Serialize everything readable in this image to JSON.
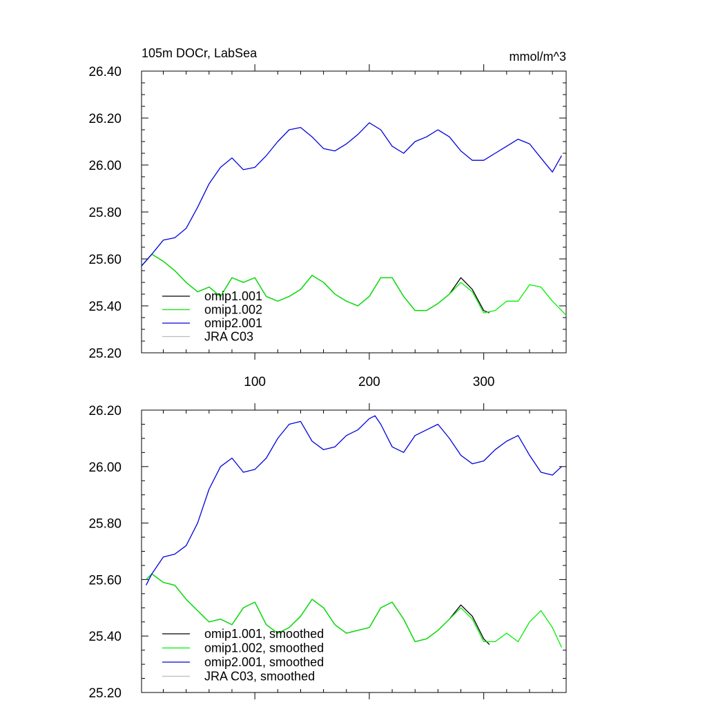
{
  "chart_data": [
    {
      "type": "line",
      "title": "105m DOCr, LabSea",
      "units": "mmol/m^3",
      "xlim": [
        1,
        372
      ],
      "ylim": [
        25.2,
        26.4
      ],
      "xticks": [
        100,
        200,
        300
      ],
      "xtick_labels": [
        "100",
        "200",
        "300"
      ],
      "yticks": [
        25.2,
        25.4,
        25.6,
        25.8,
        26.0,
        26.2,
        26.4
      ],
      "ytick_labels": [
        "25.20",
        "25.40",
        "25.60",
        "25.80",
        "26.00",
        "26.20",
        "26.40"
      ],
      "legend_position": "bottom-left",
      "series": [
        {
          "name": "omip1.001",
          "color": "#000000",
          "x": [
            1,
            10,
            20,
            30,
            40,
            50,
            60,
            70,
            80,
            90,
            100,
            110,
            120,
            130,
            140,
            150,
            160,
            170,
            180,
            190,
            200,
            210,
            220,
            230,
            240,
            250,
            260,
            270,
            280,
            290,
            300,
            305
          ],
          "y": [
            25.57,
            25.62,
            25.59,
            25.55,
            25.5,
            25.46,
            25.48,
            25.44,
            25.52,
            25.5,
            25.52,
            25.44,
            25.42,
            25.44,
            25.47,
            25.53,
            25.5,
            25.45,
            25.42,
            25.4,
            25.44,
            25.52,
            25.52,
            25.44,
            25.38,
            25.38,
            25.41,
            25.45,
            25.52,
            25.47,
            25.38,
            25.37
          ]
        },
        {
          "name": "omip1.002",
          "color": "#00ee00",
          "x": [
            1,
            10,
            20,
            30,
            40,
            50,
            60,
            70,
            80,
            90,
            100,
            110,
            120,
            130,
            140,
            150,
            160,
            170,
            180,
            190,
            200,
            210,
            220,
            230,
            240,
            250,
            260,
            270,
            280,
            290,
            300,
            310,
            320,
            330,
            340,
            350,
            360,
            372
          ],
          "y": [
            25.57,
            25.62,
            25.59,
            25.55,
            25.5,
            25.46,
            25.48,
            25.44,
            25.52,
            25.5,
            25.52,
            25.44,
            25.42,
            25.44,
            25.47,
            25.53,
            25.5,
            25.45,
            25.42,
            25.4,
            25.44,
            25.52,
            25.52,
            25.44,
            25.38,
            25.38,
            25.41,
            25.45,
            25.5,
            25.46,
            25.37,
            25.38,
            25.42,
            25.42,
            25.49,
            25.48,
            25.42,
            25.36
          ]
        },
        {
          "name": "omip2.001",
          "color": "#0000dd",
          "x": [
            1,
            10,
            20,
            30,
            40,
            50,
            60,
            70,
            80,
            90,
            100,
            110,
            120,
            130,
            140,
            150,
            160,
            170,
            180,
            190,
            200,
            210,
            220,
            230,
            240,
            250,
            260,
            270,
            280,
            290,
            300,
            310,
            320,
            330,
            340,
            350,
            360,
            368
          ],
          "y": [
            25.57,
            25.62,
            25.68,
            25.69,
            25.73,
            25.82,
            25.92,
            25.99,
            26.03,
            25.98,
            25.99,
            26.04,
            26.1,
            26.15,
            26.16,
            26.12,
            26.07,
            26.06,
            26.09,
            26.13,
            26.18,
            26.15,
            26.08,
            26.05,
            26.1,
            26.12,
            26.15,
            26.12,
            26.06,
            26.02,
            26.02,
            26.05,
            26.08,
            26.11,
            26.09,
            26.03,
            25.97,
            26.04
          ]
        },
        {
          "name": "JRA C03",
          "color": "#bbbbbb",
          "x": [],
          "y": []
        }
      ]
    },
    {
      "type": "line",
      "title": "",
      "units": "",
      "xlim": [
        1,
        372
      ],
      "ylim": [
        25.2,
        26.2
      ],
      "xticks": [
        100,
        200,
        300
      ],
      "xtick_labels": [],
      "yticks": [
        25.2,
        25.4,
        25.6,
        25.8,
        26.0,
        26.2
      ],
      "ytick_labels": [
        "25.20",
        "25.40",
        "25.60",
        "25.80",
        "26.00",
        "26.20"
      ],
      "legend_position": "bottom-left",
      "series": [
        {
          "name": "omip1.001, smoothed",
          "color": "#000000",
          "x": [
            5,
            10,
            20,
            30,
            40,
            50,
            60,
            70,
            80,
            90,
            100,
            110,
            120,
            130,
            140,
            150,
            160,
            170,
            180,
            190,
            200,
            210,
            220,
            230,
            240,
            250,
            260,
            270,
            280,
            290,
            300,
            305
          ],
          "y": [
            25.6,
            25.62,
            25.59,
            25.58,
            25.53,
            25.49,
            25.45,
            25.46,
            25.44,
            25.5,
            25.52,
            25.44,
            25.41,
            25.43,
            25.47,
            25.53,
            25.5,
            25.44,
            25.41,
            25.42,
            25.43,
            25.5,
            25.52,
            25.46,
            25.38,
            25.39,
            25.42,
            25.46,
            25.51,
            25.47,
            25.39,
            25.37
          ]
        },
        {
          "name": "omip1.002, smoothed",
          "color": "#00ee00",
          "x": [
            5,
            10,
            20,
            30,
            40,
            50,
            60,
            70,
            80,
            90,
            100,
            110,
            120,
            130,
            140,
            150,
            160,
            170,
            180,
            190,
            200,
            210,
            220,
            230,
            240,
            250,
            260,
            270,
            280,
            290,
            300,
            310,
            320,
            330,
            340,
            350,
            360,
            368
          ],
          "y": [
            25.6,
            25.62,
            25.59,
            25.58,
            25.53,
            25.49,
            25.45,
            25.46,
            25.44,
            25.5,
            25.52,
            25.44,
            25.41,
            25.43,
            25.47,
            25.53,
            25.5,
            25.44,
            25.41,
            25.42,
            25.43,
            25.5,
            25.52,
            25.46,
            25.38,
            25.39,
            25.42,
            25.46,
            25.5,
            25.46,
            25.38,
            25.38,
            25.41,
            25.38,
            25.45,
            25.49,
            25.43,
            25.36
          ]
        },
        {
          "name": "omip2.001, smoothed",
          "color": "#0000dd",
          "x": [
            5,
            10,
            20,
            30,
            40,
            50,
            60,
            70,
            80,
            90,
            100,
            110,
            120,
            130,
            140,
            150,
            160,
            170,
            180,
            190,
            200,
            205,
            210,
            220,
            230,
            240,
            250,
            260,
            270,
            280,
            290,
            300,
            310,
            320,
            330,
            340,
            350,
            360,
            368
          ],
          "y": [
            25.58,
            25.62,
            25.68,
            25.69,
            25.72,
            25.8,
            25.92,
            26.0,
            26.03,
            25.98,
            25.99,
            26.03,
            26.1,
            26.15,
            26.16,
            26.09,
            26.06,
            26.07,
            26.11,
            26.13,
            26.17,
            26.18,
            26.15,
            26.07,
            26.05,
            26.11,
            26.13,
            26.15,
            26.1,
            26.04,
            26.01,
            26.02,
            26.06,
            26.09,
            26.11,
            26.04,
            25.98,
            25.97,
            26.0
          ]
        },
        {
          "name": "JRA C03, smoothed",
          "color": "#bbbbbb",
          "x": [],
          "y": []
        }
      ]
    }
  ]
}
